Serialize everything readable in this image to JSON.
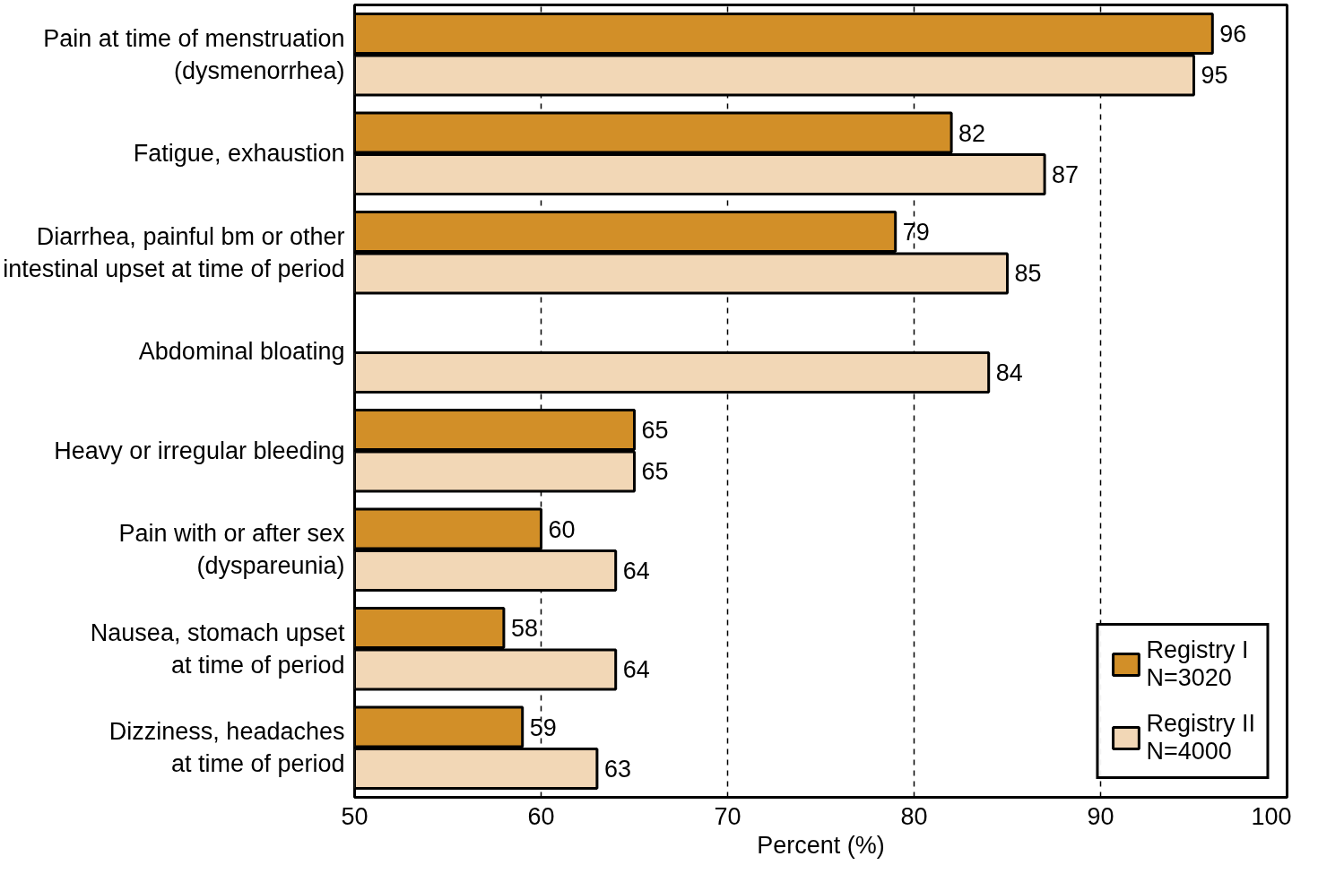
{
  "chart_data": {
    "type": "bar",
    "orientation": "horizontal",
    "xlabel": "Percent (%)",
    "categories": [
      "Pain at time of menstruation\n(dysmenorrhea)",
      "Fatigue, exhaustion",
      "Diarrhea, painful bm or other\nintestinal upset at time of period",
      "Abdominal bloating",
      "Heavy or irregular bleeding",
      "Pain with or after sex\n(dyspareunia)",
      "Nausea, stomach upset\nat time of period",
      "Dizziness, headaches\nat time of period"
    ],
    "series": [
      {
        "name": "Registry I\nN=3020",
        "color": "#d28f28",
        "values": [
          96,
          82,
          79,
          null,
          65,
          60,
          58,
          59
        ]
      },
      {
        "name": "Registry II\nN=4000",
        "color": "#f2d7b6",
        "values": [
          95,
          87,
          85,
          84,
          65,
          64,
          64,
          63
        ]
      }
    ],
    "xlim": [
      50,
      100
    ],
    "xticks": [
      50,
      60,
      70,
      80,
      90,
      100
    ],
    "grid": "x",
    "legend": "bottom right",
    "data_labels": true
  }
}
